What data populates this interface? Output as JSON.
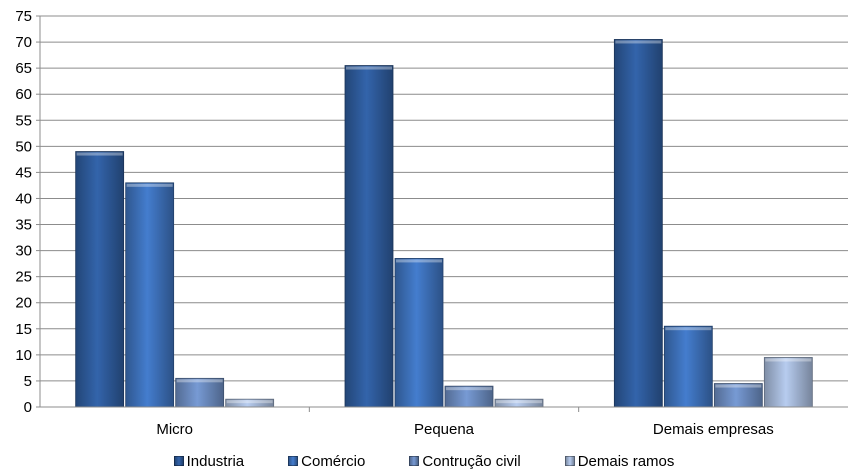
{
  "chart_data": {
    "type": "bar",
    "categories": [
      "Micro",
      "Pequena",
      "Demais empresas"
    ],
    "series": [
      {
        "name": "Industria",
        "values": [
          49,
          65.5,
          70.5
        ],
        "color": "#2F5D9E"
      },
      {
        "name": "Comércio",
        "values": [
          43,
          28.5,
          15.5
        ],
        "color": "#3F74BF"
      },
      {
        "name": "Contrução civil",
        "values": [
          5.5,
          4,
          4.5
        ],
        "color": "#6E8FC4"
      },
      {
        "name": "Demais ramos",
        "values": [
          1.5,
          1.5,
          9.5
        ],
        "color": "#A9BDDD"
      }
    ],
    "yticks": [
      "0",
      "5",
      "10",
      "15",
      "20",
      "25",
      "30",
      "35",
      "40",
      "45",
      "50",
      "55",
      "60",
      "65",
      "70",
      "75"
    ],
    "ylim": [
      0,
      75
    ],
    "grid": true,
    "legend_position": "bottom",
    "title": "",
    "xlabel": "",
    "ylabel": ""
  }
}
